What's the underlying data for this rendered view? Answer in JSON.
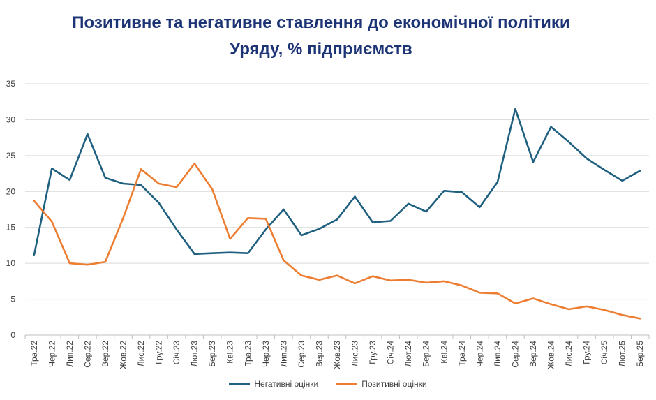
{
  "chart_data": {
    "type": "line",
    "title_lines": [
      "Позитивне та негативне ставлення до економічної політики",
      "Уряду, % підприємств"
    ],
    "xlabel": "",
    "ylabel": "",
    "ylim": [
      0,
      35
    ],
    "yticks": [
      0,
      5,
      10,
      15,
      20,
      25,
      30,
      35
    ],
    "grid": true,
    "legend_position": "bottom",
    "categories": [
      "Тра.22",
      "Чер.22",
      "Лип.22",
      "Сер.22",
      "Вер.22",
      "Жов.22",
      "Лис.22",
      "Гру.22",
      "Січ.23",
      "Лют.23",
      "Бер.23",
      "Кві.23",
      "Тра.23",
      "Чер.23",
      "Лип.23",
      "Сер.23",
      "Вер.23",
      "Жов.23",
      "Лис.23",
      "Гру.23",
      "Січ.24",
      "Лют.24",
      "Бер.24",
      "Кві.24",
      "Тра.24",
      "Чер.24",
      "Лип.24",
      "Сер.24",
      "Вер.24",
      "Жов.24",
      "Лис.24",
      "Гру.24",
      "Січ.25",
      "Лют.25",
      "Бер.25"
    ],
    "series": [
      {
        "name": "Негативні оцінки",
        "color": "#1f5f7f",
        "values": [
          11.1,
          23.2,
          21.6,
          28.0,
          21.9,
          21.1,
          20.9,
          18.4,
          14.7,
          11.3,
          11.4,
          11.5,
          11.4,
          14.7,
          17.5,
          13.9,
          14.8,
          16.1,
          19.3,
          15.7,
          15.9,
          18.3,
          17.2,
          20.1,
          19.9,
          17.8,
          21.3,
          31.5,
          24.1,
          29.0,
          26.9,
          24.6,
          23.0,
          21.5,
          22.9
        ]
      },
      {
        "name": "Позитивні оцінки",
        "color": "#ed7d31",
        "values": [
          18.7,
          15.8,
          10.0,
          9.8,
          10.2,
          16.3,
          23.1,
          21.1,
          20.6,
          23.9,
          20.3,
          13.4,
          16.3,
          16.2,
          10.4,
          8.3,
          7.7,
          8.3,
          7.2,
          8.2,
          7.6,
          7.7,
          7.3,
          7.5,
          6.9,
          5.9,
          5.8,
          4.4,
          5.1,
          4.3,
          3.6,
          4.0,
          3.5,
          2.8,
          2.3
        ]
      }
    ]
  }
}
